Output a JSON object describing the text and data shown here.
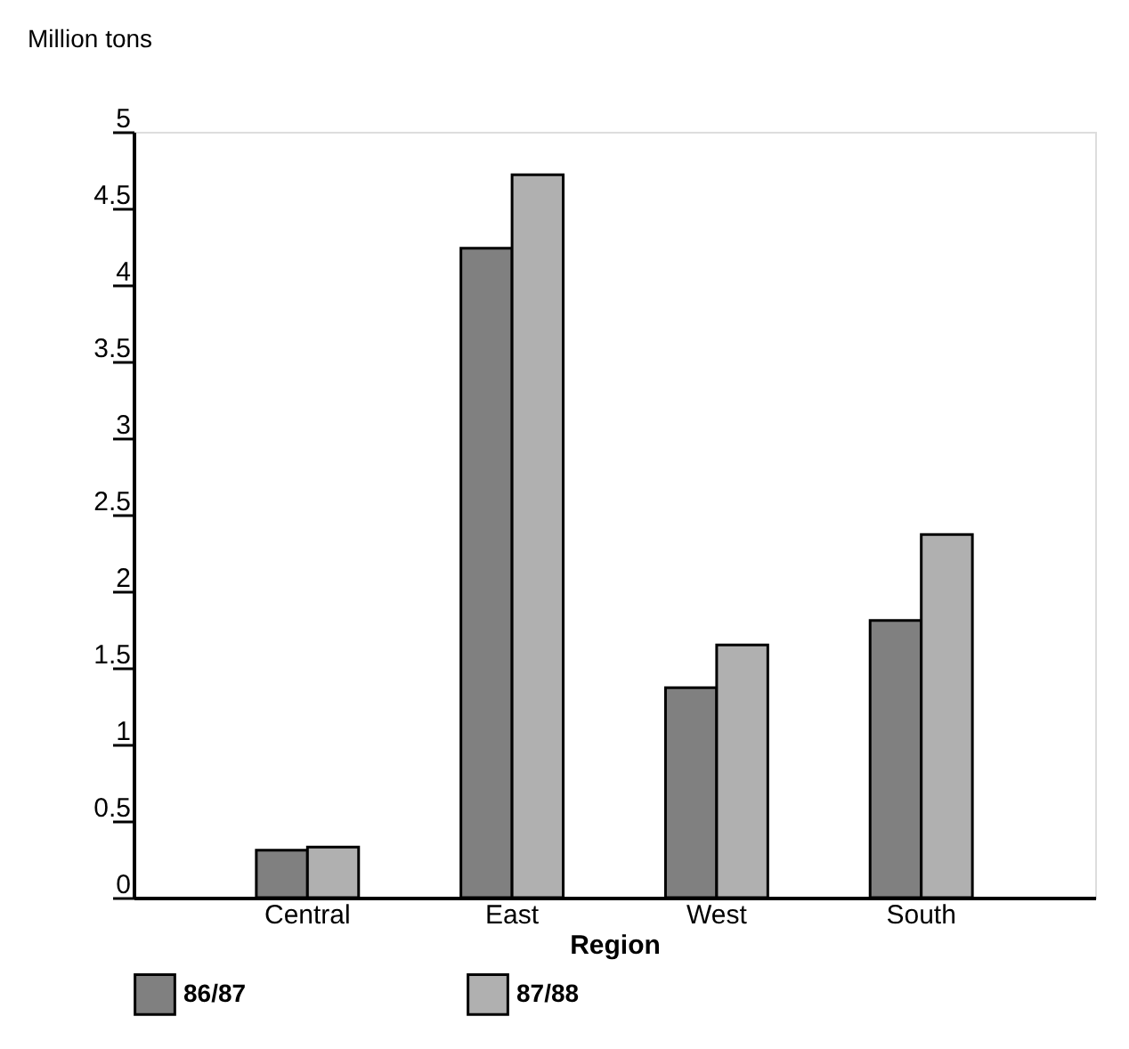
{
  "chart_data": {
    "type": "bar",
    "xlabel": "Region",
    "ylabel": "Million tons",
    "categories": [
      "Central",
      "East",
      "West",
      "South"
    ],
    "series": [
      {
        "name": "86/87",
        "color": "#808080",
        "values": [
          0.31,
          4.24,
          1.37,
          1.81
        ]
      },
      {
        "name": "87/88",
        "color": "#b0b0b0",
        "values": [
          0.33,
          4.72,
          1.65,
          2.37
        ]
      }
    ],
    "ylim": [
      0,
      5
    ],
    "yticks": [
      0,
      0.5,
      1,
      1.5,
      2,
      2.5,
      3,
      3.5,
      4,
      4.5,
      5
    ],
    "grid": false,
    "legend": "bottom left"
  }
}
